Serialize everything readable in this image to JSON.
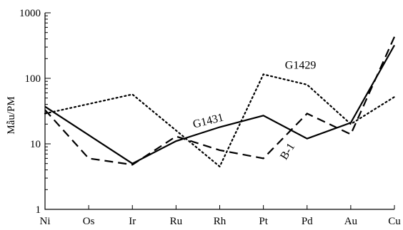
{
  "chart_data": {
    "type": "line",
    "title": "",
    "xlabel": "",
    "ylabel": "Mẫu/PM",
    "yscale": "log",
    "ylim": [
      1,
      1000
    ],
    "yticks": [
      "1",
      "10",
      "100",
      "1000"
    ],
    "categories": [
      "Ni",
      "Os",
      "Ir",
      "Ru",
      "Rh",
      "Pt",
      "Pd",
      "Au",
      "Cu"
    ],
    "grid": false,
    "series": [
      {
        "name": "G1431",
        "style": "solid",
        "values": [
          37,
          null,
          5,
          11,
          18,
          27,
          12,
          21,
          320
        ]
      },
      {
        "name": "G1429",
        "style": "dotted",
        "values": [
          29,
          null,
          57,
          null,
          4.5,
          115,
          80,
          20,
          52
        ]
      },
      {
        "name": "B-1",
        "style": "dashed",
        "values": [
          33,
          6,
          4.8,
          13,
          8,
          6,
          29,
          14,
          430
        ]
      }
    ],
    "colors": {
      "line": "#000000",
      "background": "#ffffff"
    }
  }
}
